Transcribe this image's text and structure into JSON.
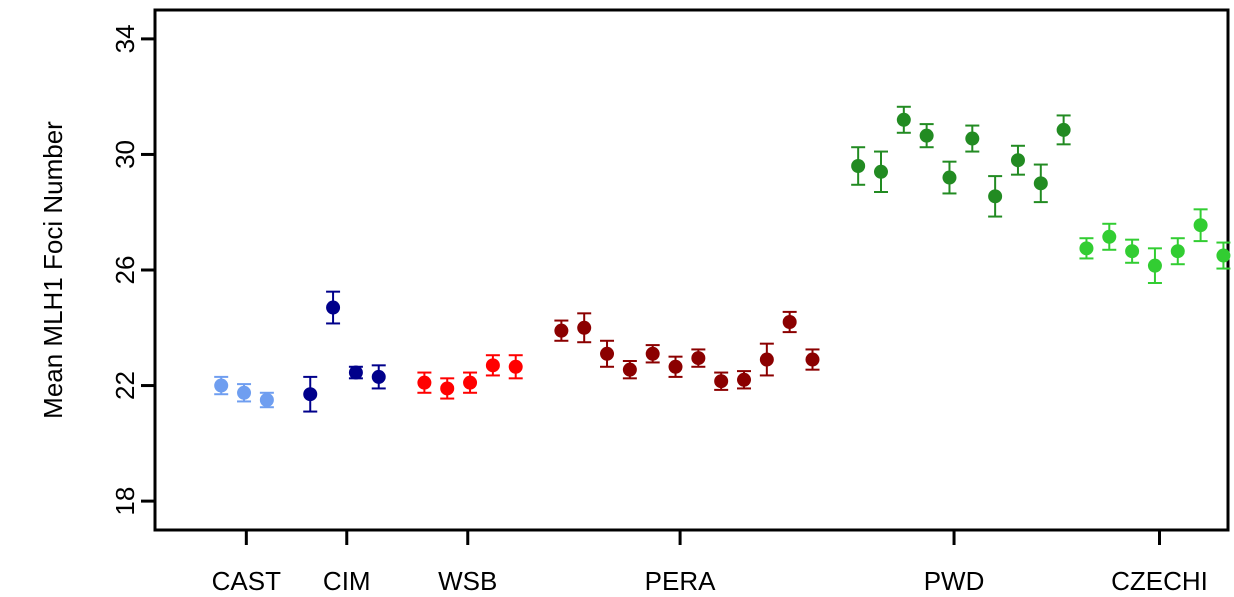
{
  "chart_data": {
    "type": "scatter",
    "ylabel": "Mean MLH1 Foci Number",
    "ylim": [
      17.0,
      35.0
    ],
    "yticks": [
      18,
      22,
      26,
      30,
      34
    ],
    "xlim": [
      0.0,
      47.0
    ],
    "grid": false,
    "groups": [
      {
        "name": "CAST",
        "label_x": 4.0,
        "color": "#6f9ef0",
        "x": [
          2.9,
          3.9,
          4.9
        ],
        "y": [
          22.0,
          21.75,
          21.5
        ],
        "err": [
          0.3,
          0.3,
          0.25
        ]
      },
      {
        "name": "CIM",
        "label_x": 8.4,
        "color": "#00008b",
        "x": [
          6.8,
          7.8,
          8.8,
          9.8
        ],
        "y": [
          21.7,
          24.7,
          22.45,
          22.3
        ],
        "err": [
          0.6,
          0.55,
          0.2,
          0.4
        ]
      },
      {
        "name": "WSB",
        "label_x": 13.7,
        "color": "#ff0000",
        "x": [
          11.8,
          12.8,
          13.8,
          14.8,
          15.8
        ],
        "y": [
          22.1,
          21.9,
          22.1,
          22.7,
          22.65
        ],
        "err": [
          0.35,
          0.35,
          0.35,
          0.35,
          0.4
        ]
      },
      {
        "name": "PERA",
        "label_x": 23.0,
        "color": "#8b0000",
        "x": [
          17.8,
          18.8,
          19.8,
          20.8,
          21.8,
          22.8,
          23.8,
          24.8,
          25.8,
          26.8,
          27.8,
          28.8
        ],
        "y": [
          23.9,
          24.0,
          23.1,
          22.55,
          23.1,
          22.65,
          22.95,
          22.15,
          22.2,
          22.9,
          24.2,
          22.9
        ],
        "err": [
          0.35,
          0.5,
          0.45,
          0.3,
          0.3,
          0.35,
          0.3,
          0.3,
          0.3,
          0.55,
          0.35,
          0.35
        ]
      },
      {
        "name": "PWD",
        "label_x": 35.0,
        "color": "#228b22",
        "x": [
          30.8,
          31.8,
          32.8,
          33.8,
          34.8,
          35.8,
          36.8,
          37.8,
          38.8,
          39.8
        ],
        "y": [
          29.6,
          29.4,
          31.2,
          30.65,
          29.2,
          30.55,
          28.55,
          29.8,
          29.0,
          30.85
        ],
        "err": [
          0.65,
          0.7,
          0.45,
          0.4,
          0.55,
          0.45,
          0.7,
          0.5,
          0.65,
          0.5
        ]
      },
      {
        "name": "CZECHI",
        "label_x": 44.0,
        "color": "#32cd32",
        "x": [
          40.8,
          41.8,
          42.8,
          43.8,
          44.8,
          45.8,
          46.8
        ],
        "y": [
          26.75,
          27.15,
          26.65,
          26.15,
          26.65,
          27.55,
          26.5
        ],
        "err": [
          0.35,
          0.45,
          0.4,
          0.6,
          0.45,
          0.55,
          0.45
        ]
      }
    ]
  }
}
